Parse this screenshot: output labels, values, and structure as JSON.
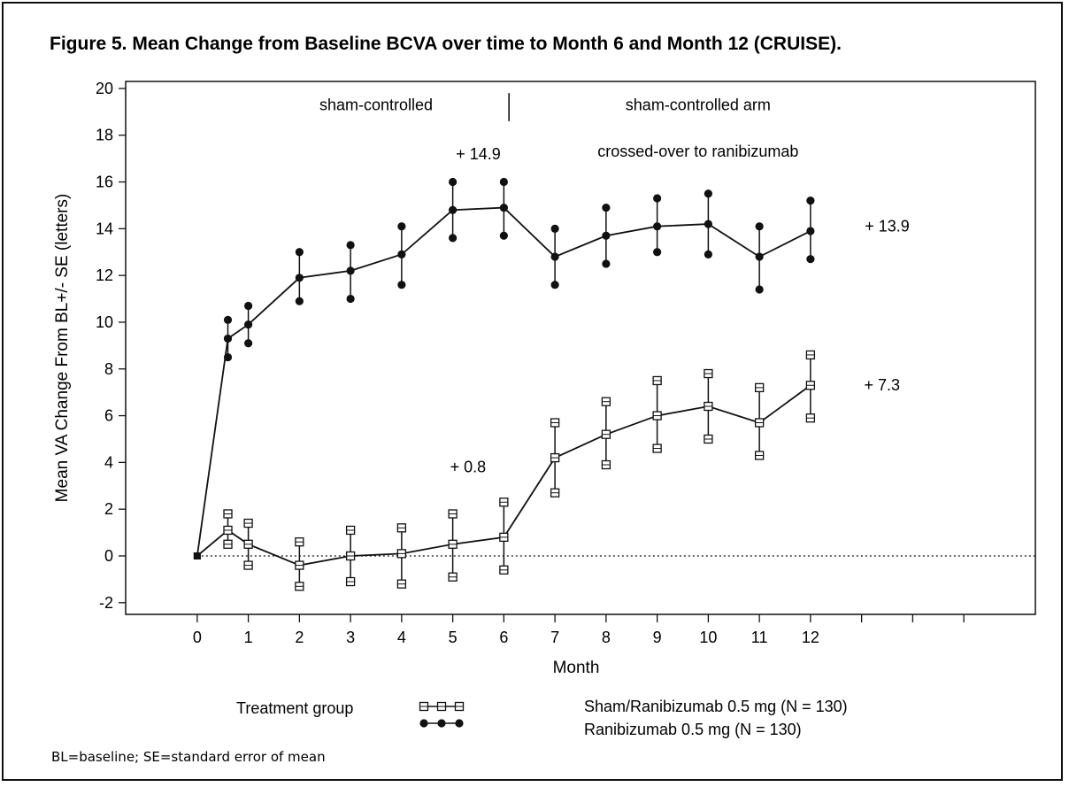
{
  "figure": {
    "title": "Figure 5. Mean Change from Baseline BCVA  over  time to Month 6 and Month 12 (CRUISE).",
    "footnote": "BL=baseline; SE=standard error of mean"
  },
  "chart_data": {
    "type": "line",
    "xlabel": "Month",
    "ylabel": "Mean VA Change From BL+/- SE (letters)",
    "xlim": [
      -1.4,
      16.4
    ],
    "ylim": [
      -2.5,
      20.3
    ],
    "x_ticks": [
      0,
      1,
      2,
      3,
      4,
      5,
      6,
      7,
      8,
      9,
      10,
      11,
      12
    ],
    "x_tick_marks_unlabeled": [
      13,
      14,
      15
    ],
    "y_ticks": [
      -2,
      0,
      2,
      4,
      6,
      8,
      10,
      12,
      14,
      16,
      18,
      20
    ],
    "reference_line": {
      "y": 0,
      "style": "dotted"
    },
    "series": [
      {
        "name": "Ranibizumab 0.5 mg (N = 130)",
        "marker": "filled-circle",
        "x": [
          0,
          0.6,
          1,
          2,
          3,
          4,
          5,
          6,
          7,
          8,
          9,
          10,
          11,
          12
        ],
        "y": [
          0,
          9.3,
          9.9,
          11.9,
          12.2,
          12.9,
          14.8,
          14.9,
          12.8,
          13.7,
          14.1,
          14.2,
          12.8,
          13.9
        ],
        "upper": [
          0,
          10.1,
          10.7,
          13.0,
          13.3,
          14.1,
          16.0,
          16.0,
          14.0,
          14.9,
          15.3,
          15.5,
          14.1,
          15.2
        ],
        "lower": [
          0,
          8.5,
          9.1,
          10.9,
          11.0,
          11.6,
          13.6,
          13.7,
          11.6,
          12.5,
          13.0,
          12.9,
          11.4,
          12.7
        ]
      },
      {
        "name": "Sham/Ranibizumab 0.5 mg (N = 130)",
        "marker": "open-square",
        "x": [
          0,
          0.6,
          1,
          2,
          3,
          4,
          5,
          6,
          7,
          8,
          9,
          10,
          11,
          12
        ],
        "y": [
          0,
          1.1,
          0.5,
          -0.4,
          0.0,
          0.1,
          0.5,
          0.8,
          4.2,
          5.2,
          6.0,
          6.4,
          5.7,
          7.3
        ],
        "upper": [
          0,
          1.8,
          1.4,
          0.6,
          1.1,
          1.2,
          1.8,
          2.3,
          5.7,
          6.6,
          7.5,
          7.8,
          7.2,
          8.6
        ],
        "lower": [
          0,
          0.5,
          -0.4,
          -1.3,
          -1.1,
          -1.2,
          -0.9,
          -0.6,
          2.7,
          3.9,
          4.6,
          5.0,
          4.3,
          5.9
        ]
      }
    ],
    "annotations": [
      {
        "text": "sham-controlled",
        "x": 3.5,
        "y": 19.3
      },
      {
        "text": "sham-controlled arm",
        "x": 9.8,
        "y": 19.3
      },
      {
        "text": "crossed-over to ranibizumab",
        "x": 9.8,
        "y": 17.3
      },
      {
        "text": "+ 14.9",
        "x": 5.5,
        "y": 17.2
      },
      {
        "text": "+ 13.9",
        "x": 13.5,
        "y": 14.1
      },
      {
        "text": "+ 7.3",
        "x": 13.4,
        "y": 7.3
      },
      {
        "text": "+ 0.8",
        "x": 5.3,
        "y": 3.8
      }
    ],
    "divider": {
      "x": 6.1,
      "y_from": 18.6,
      "y_to": 19.8
    },
    "legend": {
      "title": "Treatment group",
      "placement": "bottom"
    }
  }
}
